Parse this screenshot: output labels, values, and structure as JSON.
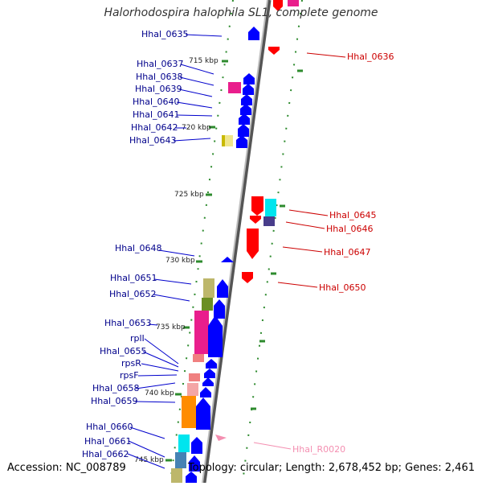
{
  "title": "Halorhodospira halophila SL1, complete genome",
  "footer": {
    "accession": "Accession: NC_008789",
    "summary": "Topology: circular; Length: 2,678,452 bp; Genes: 2,461"
  },
  "colors": {
    "backbone": "#8a8a8a",
    "forward_gene": "#0000ff",
    "reverse_gene": "#ff0000",
    "left_label": "#00008b",
    "right_label": "#cc0000",
    "rna_label": "#f48fb1",
    "tick": "#2e8b2e"
  },
  "kbp_ticks": [
    "715 kbp",
    "720 kbp",
    "725 kbp",
    "730 kbp",
    "735 kbp",
    "740 kbp",
    "745 kbp"
  ],
  "left_genes": [
    "Hhal_0635",
    "Hhal_0637",
    "Hhal_0638",
    "Hhal_0639",
    "Hhal_0640",
    "Hhal_0641",
    "Hhal_0642",
    "Hhal_0643",
    "Hhal_0648",
    "Hhal_0651",
    "Hhal_0652",
    "Hhal_0653",
    "rplI",
    "Hhal_0655",
    "rpsR",
    "rpsF",
    "Hhal_0658",
    "Hhal_0659",
    "Hhal_0660",
    "Hhal_0661",
    "Hhal_0662"
  ],
  "right_genes": [
    "Hhal_0636",
    "Hhal_0645",
    "Hhal_0646",
    "Hhal_0647",
    "Hhal_0650",
    "Hhal_R0020"
  ]
}
